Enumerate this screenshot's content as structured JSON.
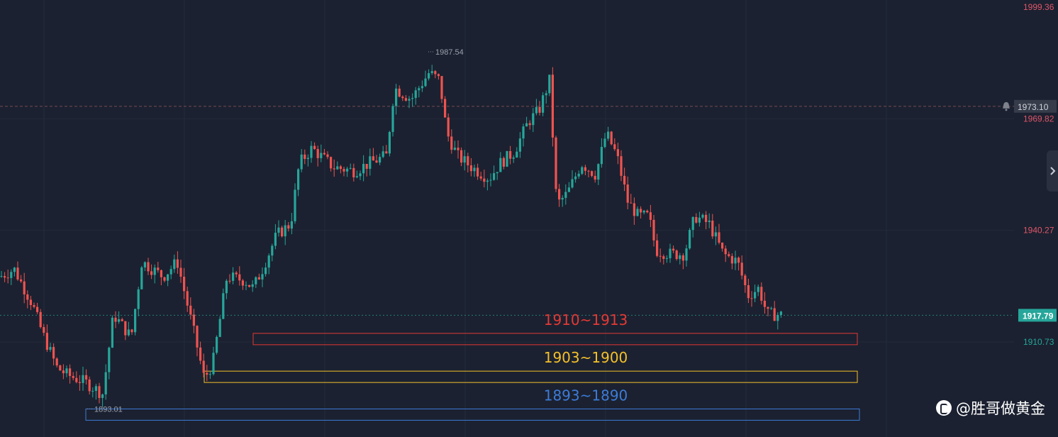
{
  "chart_data": {
    "type": "candlestick",
    "ylim": [
      1886,
      2001
    ],
    "price_scale": {
      "tick_labels": [
        {
          "value": 1999.36,
          "label": "1999.36",
          "color": "#e0566a"
        },
        {
          "value": 1969.82,
          "label": "1969.82",
          "color": "#e0566a"
        },
        {
          "value": 1940.27,
          "label": "1940.27",
          "color": "#e0566a"
        },
        {
          "value": 1910.73,
          "label": "1910.73",
          "color": "#26a69a"
        }
      ],
      "alert_level": {
        "value": 1973.1,
        "label": "1973.10"
      },
      "current_price": {
        "value": 1917.79,
        "label": "1917.79"
      }
    },
    "annotations": [
      {
        "label": "1987.54",
        "price": 1987.54
      },
      {
        "label": "1893.01",
        "price": 1893.01
      }
    ],
    "zones": [
      {
        "label": "1910~1913",
        "low": 1910,
        "high": 1913,
        "color": "#e53935"
      },
      {
        "label": "1903~1900",
        "low": 1900,
        "high": 1903,
        "color": "#f5c02a"
      },
      {
        "label": "1893~1890",
        "low": 1890,
        "high": 1893,
        "color": "#3d7bd8"
      }
    ],
    "colors": {
      "up": "#26a69a",
      "down": "#ef5350",
      "background": "#1b2130"
    },
    "candles": []
  },
  "watermark": {
    "text": "@胜哥做黄金"
  }
}
